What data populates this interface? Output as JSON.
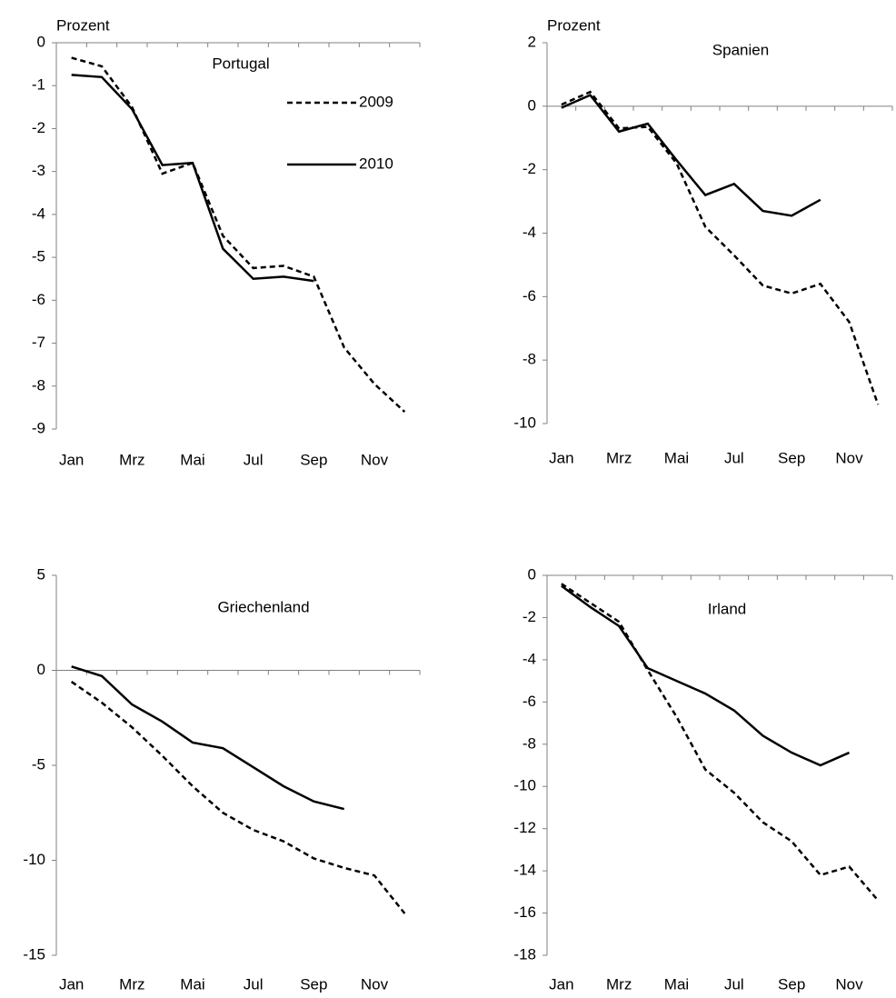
{
  "chart_data": [
    {
      "type": "line",
      "title": "Portugal",
      "y_label": "Prozent",
      "categories": [
        "Jan",
        null,
        "Mrz",
        null,
        "Mai",
        null,
        "Jul",
        null,
        "Sep",
        null,
        "Nov",
        null
      ],
      "series": [
        {
          "name": "2009",
          "color": "#000000",
          "line_style": "dashed",
          "values": [
            -0.35,
            -0.55,
            -1.5,
            -3.05,
            -2.8,
            -4.5,
            -5.25,
            -5.2,
            -5.45,
            -7.1,
            -7.95,
            -8.6
          ]
        },
        {
          "name": "2010",
          "color": "#000000",
          "line_style": "solid",
          "values": [
            -0.75,
            -0.8,
            -1.55,
            -2.85,
            -2.8,
            -4.8,
            -5.5,
            -5.45,
            -5.55,
            null,
            null,
            null
          ]
        }
      ],
      "ylim": [
        -9,
        0
      ],
      "yticks": [
        0,
        -1,
        -2,
        -3,
        -4,
        -5,
        -6,
        -7,
        -8,
        -9
      ],
      "legend": "upper right"
    },
    {
      "type": "line",
      "title": "Spanien",
      "y_label": "Prozent",
      "categories": [
        "Jan",
        null,
        "Mrz",
        null,
        "Mai",
        null,
        "Jul",
        null,
        "Sep",
        null,
        "Nov",
        null
      ],
      "series": [
        {
          "name": "2009",
          "color": "#000000",
          "line_style": "dashed",
          "values": [
            0.05,
            0.45,
            -0.7,
            -0.65,
            -1.8,
            -3.8,
            -4.7,
            -5.65,
            -5.9,
            -5.6,
            -6.8,
            -9.4
          ]
        },
        {
          "name": "2010",
          "color": "#000000",
          "line_style": "solid",
          "values": [
            -0.05,
            0.35,
            -0.8,
            -0.55,
            -1.7,
            -2.8,
            -2.45,
            -3.3,
            -3.45,
            -2.95,
            null,
            null
          ]
        }
      ],
      "ylim": [
        -10,
        2
      ],
      "yticks": [
        2,
        0,
        -2,
        -4,
        -6,
        -8,
        -10
      ]
    },
    {
      "type": "line",
      "title": "Griechenland",
      "categories": [
        "Jan",
        null,
        "Mrz",
        null,
        "Mai",
        null,
        "Jul",
        null,
        "Sep",
        null,
        "Nov",
        null
      ],
      "series": [
        {
          "name": "2009",
          "color": "#000000",
          "line_style": "dashed",
          "values": [
            -0.6,
            -1.7,
            -3.0,
            -4.5,
            -6.1,
            -7.5,
            -8.4,
            -9.0,
            -9.9,
            -10.4,
            -10.8,
            -12.8
          ]
        },
        {
          "name": "2010",
          "color": "#000000",
          "line_style": "solid",
          "values": [
            0.2,
            -0.3,
            -1.8,
            -2.7,
            -3.8,
            -4.1,
            -5.1,
            -6.1,
            -6.9,
            -7.3,
            null,
            null
          ]
        }
      ],
      "ylim": [
        -15,
        5
      ],
      "yticks": [
        5,
        0,
        -5,
        -10,
        -15
      ]
    },
    {
      "type": "line",
      "title": "Irland",
      "categories": [
        "Jan",
        null,
        "Mrz",
        null,
        "Mai",
        null,
        "Jul",
        null,
        "Sep",
        null,
        "Nov",
        null
      ],
      "series": [
        {
          "name": "2009",
          "color": "#000000",
          "line_style": "dashed",
          "values": [
            -0.4,
            -1.3,
            -2.2,
            -4.5,
            -6.7,
            -9.2,
            -10.3,
            -11.7,
            -12.6,
            -14.2,
            -13.8,
            -15.4
          ]
        },
        {
          "name": "2010",
          "color": "#000000",
          "line_style": "solid",
          "values": [
            -0.5,
            -1.5,
            -2.4,
            -4.4,
            -5.0,
            -5.6,
            -6.4,
            -7.6,
            -8.4,
            -9.0,
            -8.4,
            null
          ]
        }
      ],
      "ylim": [
        -18,
        0
      ],
      "yticks": [
        0,
        -2,
        -4,
        -6,
        -8,
        -10,
        -12,
        -14,
        -16,
        -18
      ]
    }
  ]
}
